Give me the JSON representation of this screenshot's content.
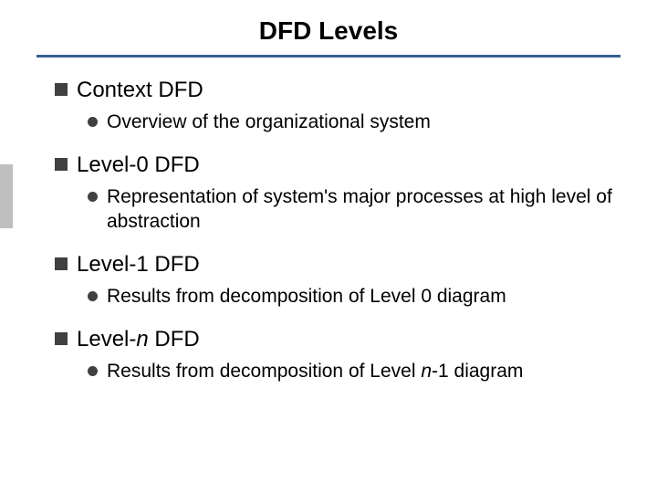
{
  "slide": {
    "title": "DFD Levels",
    "title_color": "#000000",
    "title_fontsize": 28,
    "underline_color": "#376092",
    "underline_height": 3,
    "background_color": "#ffffff",
    "left_accent_color": "#bfbfbf",
    "bullet_square_color": "#404040",
    "bullet_circle_color": "#404040",
    "l1_fontsize": 24,
    "l2_fontsize": 21,
    "items": [
      {
        "label": "Context DFD",
        "sub": [
          {
            "text": "Overview of the organizational system"
          }
        ]
      },
      {
        "label": "Level-0 DFD",
        "sub": [
          {
            "text": "Representation of system's major processes at high level of abstraction"
          }
        ]
      },
      {
        "label": "Level-1 DFD",
        "sub": [
          {
            "text": "Results from decomposition of Level 0 diagram"
          }
        ]
      },
      {
        "label_pre": "Level-",
        "label_italic": "n",
        "label_post": " DFD",
        "sub": [
          {
            "text_pre": "Results from decomposition of Level ",
            "text_italic": "n",
            "text_post": "-1 diagram"
          }
        ]
      }
    ]
  }
}
